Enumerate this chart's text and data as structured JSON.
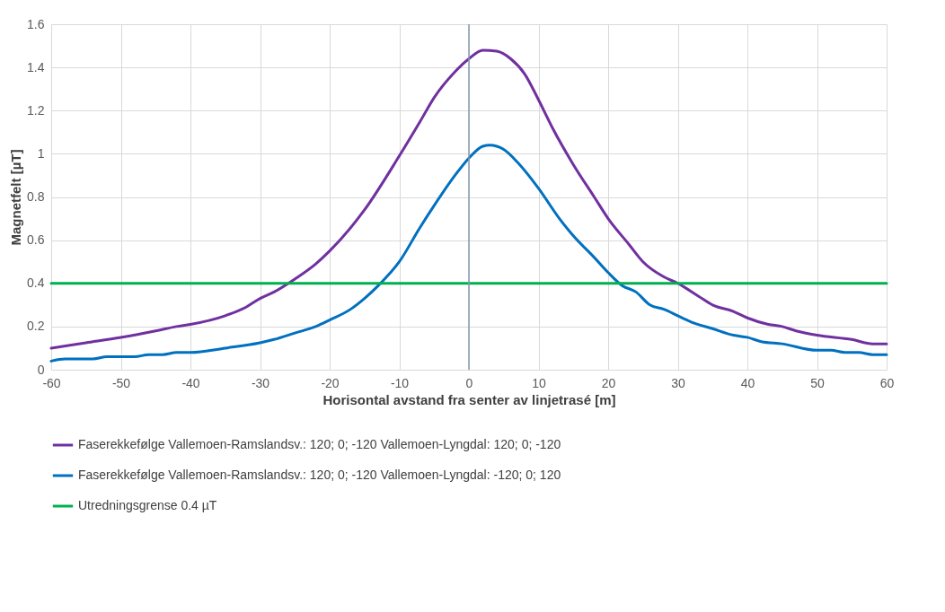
{
  "chart_data": {
    "type": "line",
    "xlabel": "Horisontal avstand fra senter av linjetrasé [m]",
    "ylabel": "Magnetfelt [µT]",
    "xlim": [
      -60,
      60
    ],
    "ylim": [
      0,
      1.6
    ],
    "xticks": [
      -60,
      -50,
      -40,
      -30,
      -20,
      -10,
      0,
      10,
      20,
      30,
      40,
      50,
      60
    ],
    "yticks": [
      0,
      0.2,
      0.4,
      0.6,
      0.8,
      1,
      1.2,
      1.4,
      1.6
    ],
    "grid": true,
    "legend": "bottom",
    "line_style": "solid",
    "marker": "none",
    "ref_lines": [
      {
        "axis": "x",
        "value": 0,
        "color": "#8497b0"
      }
    ],
    "series": [
      {
        "name": "Faserekkefølge Vallemoen-Ramslandsv.: 120; 0; -120 Vallemoen-Lyngdal: 120; 0; -120",
        "color": "#7030a0",
        "x": [
          -60,
          -55,
          -50,
          -45,
          -42,
          -40,
          -35,
          -32,
          -30,
          -28,
          -25,
          -22,
          -20,
          -15,
          -10,
          -7,
          -5,
          -2,
          0,
          2,
          4,
          6,
          8,
          10,
          12,
          15,
          18,
          20,
          23,
          25,
          28,
          30,
          33,
          35,
          38,
          40,
          43,
          45,
          47,
          50,
          55,
          58,
          60
        ],
        "values": [
          0.1,
          0.125,
          0.15,
          0.18,
          0.2,
          0.21,
          0.25,
          0.29,
          0.33,
          0.36,
          0.42,
          0.49,
          0.55,
          0.74,
          0.99,
          1.15,
          1.26,
          1.38,
          1.44,
          1.48,
          1.475,
          1.44,
          1.37,
          1.25,
          1.12,
          0.95,
          0.8,
          0.7,
          0.58,
          0.5,
          0.43,
          0.4,
          0.34,
          0.3,
          0.27,
          0.24,
          0.21,
          0.2,
          0.18,
          0.16,
          0.14,
          0.12,
          0.12
        ]
      },
      {
        "name": "Faserekkefølge Vallemoen-Ramslandsv.: 120; 0; -120 Vallemoen-Lyngdal: -120; 0; 120",
        "color": "#0070c0",
        "x": [
          -60,
          -58,
          -54,
          -52,
          -48,
          -46,
          -44,
          -42,
          -40,
          -35,
          -30,
          -28,
          -25,
          -22,
          -20,
          -17,
          -15,
          -13,
          -10,
          -7,
          -5,
          -2,
          0,
          2,
          3,
          5,
          7,
          10,
          13,
          15,
          18,
          20,
          22,
          24,
          26,
          28,
          30,
          32,
          35,
          38,
          40,
          42,
          45,
          50,
          52,
          54,
          56,
          58,
          60
        ],
        "values": [
          0.04,
          0.05,
          0.05,
          0.06,
          0.06,
          0.07,
          0.07,
          0.08,
          0.08,
          0.1,
          0.125,
          0.14,
          0.17,
          0.2,
          0.23,
          0.28,
          0.33,
          0.39,
          0.5,
          0.66,
          0.76,
          0.9,
          0.98,
          1.035,
          1.04,
          1.02,
          0.96,
          0.84,
          0.7,
          0.62,
          0.52,
          0.45,
          0.39,
          0.36,
          0.3,
          0.28,
          0.25,
          0.22,
          0.19,
          0.16,
          0.15,
          0.13,
          0.12,
          0.09,
          0.09,
          0.08,
          0.08,
          0.07,
          0.07
        ]
      },
      {
        "name": "Utredningsgrense 0.4 µT",
        "color": "#00b050",
        "x": [
          -60,
          60
        ],
        "values": [
          0.4,
          0.4
        ]
      }
    ]
  }
}
